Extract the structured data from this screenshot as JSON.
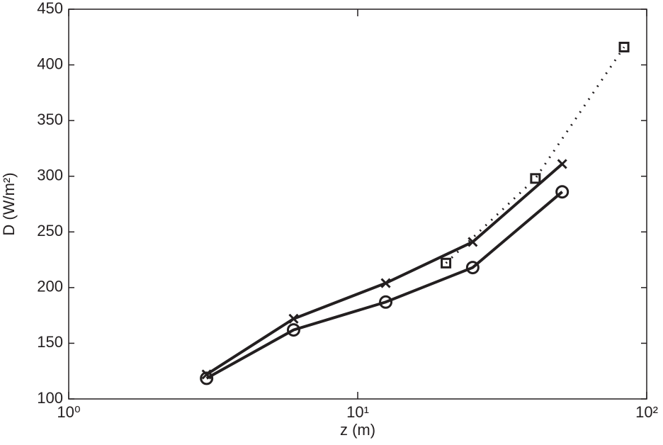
{
  "chart_data": {
    "type": "line",
    "xlabel": "z (m)",
    "ylabel": "D (W/m²)",
    "xscale": "log",
    "xlim": [
      1,
      100
    ],
    "ylim": [
      100,
      450
    ],
    "xticks": [
      {
        "value": 1,
        "label": "10⁰"
      },
      {
        "value": 10,
        "label": "10¹"
      },
      {
        "value": 100,
        "label": "10²"
      }
    ],
    "yticks": [
      100,
      150,
      200,
      250,
      300,
      350,
      400,
      450
    ],
    "grid": false,
    "series": [
      {
        "marker": "x",
        "linestyle": "solid",
        "color": "#231f20",
        "x": [
          3,
          6,
          12.5,
          25,
          51
        ],
        "values": [
          122,
          172,
          204,
          241,
          311
        ]
      },
      {
        "marker": "o",
        "linestyle": "solid",
        "color": "#231f20",
        "x": [
          3,
          6,
          12.5,
          25,
          51
        ],
        "values": [
          118.5,
          162,
          187,
          218,
          286
        ]
      },
      {
        "marker": "s",
        "linestyle": "dotted",
        "color": "#231f20",
        "x": [
          20.2,
          41.2,
          83.5
        ],
        "values": [
          222,
          298,
          416
        ]
      }
    ]
  }
}
